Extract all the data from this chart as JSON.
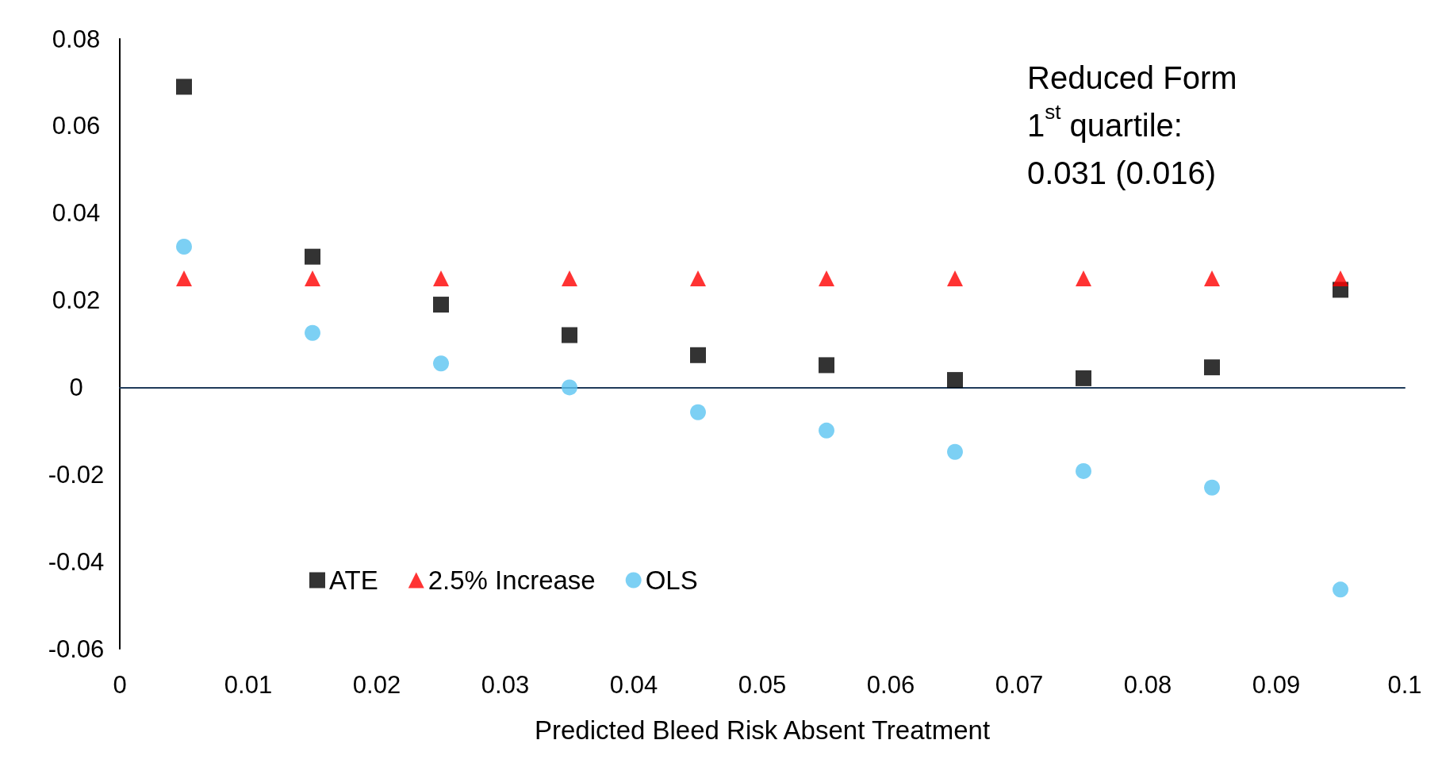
{
  "chart_data": {
    "type": "scatter",
    "xlabel": "Predicted Bleed Risk Absent Treatment",
    "x": [
      0.005,
      0.015,
      0.025,
      0.035,
      0.045,
      0.055,
      0.065,
      0.075,
      0.085,
      0.095
    ],
    "series": [
      {
        "name": "ATE",
        "color": "#000000",
        "marker": "square",
        "values": [
          0.069,
          0.03,
          0.019,
          0.012,
          0.0074,
          0.0051,
          0.0017,
          0.0021,
          0.0046,
          0.0224
        ]
      },
      {
        "name": "2.5% Increase",
        "color": "#ff0000",
        "marker": "triangle",
        "values": [
          0.025,
          0.025,
          0.025,
          0.025,
          0.025,
          0.025,
          0.025,
          0.025,
          0.025,
          0.025
        ]
      },
      {
        "name": "OLS",
        "color": "#5bc4f1",
        "marker": "circle",
        "values": [
          0.0323,
          0.0125,
          0.0055,
          0.0,
          -0.0057,
          -0.0099,
          -0.0148,
          -0.0192,
          -0.023,
          -0.0464
        ]
      }
    ],
    "xlim": [
      0,
      0.1
    ],
    "xticks": [
      0,
      0.01,
      0.02,
      0.03,
      0.04,
      0.05,
      0.06,
      0.07,
      0.08,
      0.09,
      0.1
    ],
    "ylim": [
      -0.06,
      0.08
    ],
    "yticks": [
      -0.06,
      -0.04,
      -0.02,
      0,
      0.02,
      0.04,
      0.06,
      0.08
    ],
    "grid": false,
    "legend": "bottom left",
    "annotations": [
      "Reduced Form\n1$^{st}$ quartile:\n0.031 (0.016)"
    ]
  }
}
